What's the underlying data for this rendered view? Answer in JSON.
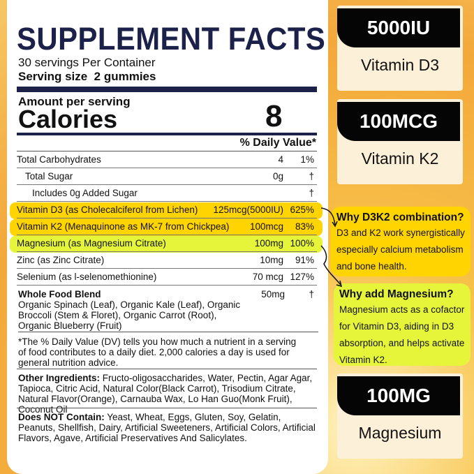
{
  "facts": {
    "title": "SUPPLEMENT FACTS",
    "servings": "30 servings Per Container",
    "serving_size": "Serving size  2 gummies",
    "amount_per_serving": "Amount per serving",
    "calories_label": "Calories",
    "calories_value": "8",
    "dv_header": "% Daily Value*",
    "rows": [
      {
        "name": "Total Carbohydrates",
        "amount": "4",
        "dv": "1%"
      },
      {
        "name": "Total Sugar",
        "amount": "0g",
        "dv": "†"
      },
      {
        "name": "Includes 0g Added Sugar",
        "amount": "",
        "dv": "†"
      },
      {
        "name": "Vitamin D3 (as Cholecalciferol from Lichen)",
        "amount": "125mcg(5000IU)",
        "dv": "625%"
      },
      {
        "name": "Vitamin K2 (Menaquinone as MK-7 from Chickpea)",
        "amount": "100mcg",
        "dv": "83%"
      },
      {
        "name": "Magnesium (as Magnesium Citrate)",
        "amount": "100mg",
        "dv": "100%"
      },
      {
        "name": "Zinc (as Zinc Citrate)",
        "amount": "10mg",
        "dv": "91%"
      },
      {
        "name": "Selenium (as l-selenomethionine)",
        "amount": "70 mcg",
        "dv": "127%"
      }
    ],
    "blend": {
      "name": "Whole Food Blend",
      "amount": "50mg",
      "dv": "†",
      "items": "Organic Spinach (Leaf), Organic Kale (Leaf), Organic Broccoli (Stem & Floret), Organic Carrot (Root), Organic Blueberry (Fruit)"
    },
    "footnote": "*The % Daily Value (DV) tells you how much a nutrient in a serving of food contributes to a daily diet. 2,000 calories a day is used for general nutrition advice.",
    "other_label": "Other Ingredients:",
    "other": " Fructo-oligosaccharides, Water, Pectin, Agar Agar, Tapioca, Citric Acid, Natural Color(Black Carrot), Trisodium Citrate, Natural Flavor(Orange), Carnauba Wax, Lo Han Guo(Monk Fruit), Coconut Oil",
    "not_contain_label": "Does NOT Contain:",
    "not_contain": " Yeast, Wheat, Eggs, Gluten, Soy, Gelatin, Peanuts, Shellfish, Dairy, Artificial Sweeteners, Artificial Colors, Artificial Flavors, Agave, Artificial Preservatives And Salicylates."
  },
  "cards": [
    {
      "value": "5000IU",
      "label": "Vitamin D3"
    },
    {
      "value": "100MCG",
      "label": "Vitamin K2"
    },
    {
      "value": "100MG",
      "label": "Magnesium"
    }
  ],
  "bubbles": [
    {
      "title": "Why D3K2 combination?",
      "text": "D3 and K2 work synergistically especially calcium metabolism and bone health."
    },
    {
      "title": "Why add Magnesium?",
      "text": "Magnesium acts as a cofactor for Vitamin D3, aiding in D3 absorption, and helps activate Vitamin K2."
    }
  ],
  "colors": {
    "navy": "#1b2148",
    "highlight_yellow": "#ffd400",
    "highlight_lime": "#e6f53a"
  }
}
